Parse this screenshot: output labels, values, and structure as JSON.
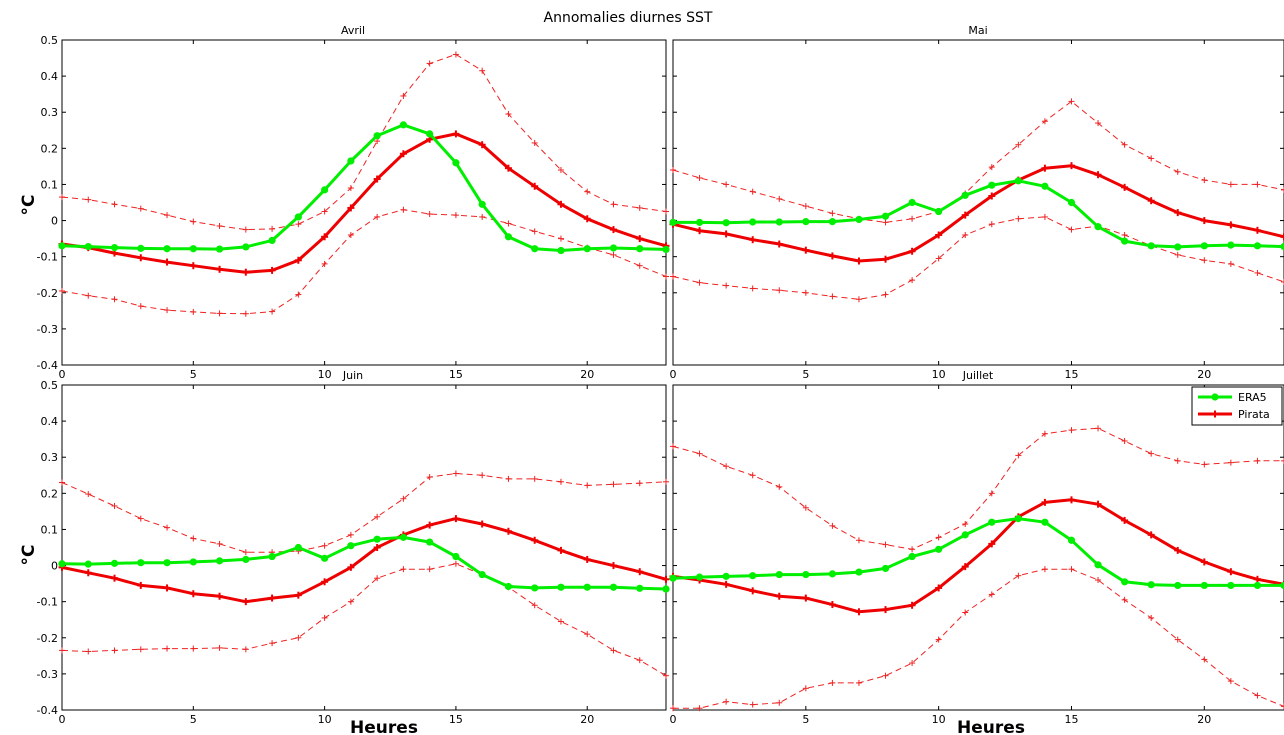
{
  "figure": {
    "suptitle": "Annomalies diurnes SST",
    "legend": {
      "placement": "top-right",
      "panel": 3
    }
  },
  "colors": {
    "era5": "#00ee00",
    "pirata": "#ee0000",
    "band": "#ee2222"
  },
  "chart_data": [
    {
      "type": "line",
      "title": "Avril",
      "xlabel": "",
      "ylabel": "°C",
      "xlim": [
        0,
        23
      ],
      "ylim": [
        -0.4,
        0.5
      ],
      "xticks": [
        0,
        5,
        10,
        15,
        20
      ],
      "yticks": [
        -0.4,
        -0.3,
        -0.2,
        -0.1,
        0,
        0.1,
        0.2,
        0.3,
        0.4,
        0.5
      ],
      "x": [
        0,
        1,
        2,
        3,
        4,
        5,
        6,
        7,
        8,
        9,
        10,
        11,
        12,
        13,
        14,
        15,
        16,
        17,
        18,
        19,
        20,
        21,
        22,
        23
      ],
      "series": [
        {
          "name": "ERA5",
          "values": [
            -0.07,
            -0.072,
            -0.075,
            -0.077,
            -0.078,
            -0.078,
            -0.079,
            -0.073,
            -0.055,
            0.01,
            0.085,
            0.165,
            0.235,
            0.265,
            0.24,
            0.16,
            0.045,
            -0.045,
            -0.078,
            -0.083,
            -0.078,
            -0.076,
            -0.078,
            -0.08
          ]
        },
        {
          "name": "Pirata",
          "values": [
            -0.065,
            -0.075,
            -0.09,
            -0.103,
            -0.115,
            -0.125,
            -0.135,
            -0.143,
            -0.138,
            -0.11,
            -0.045,
            0.035,
            0.115,
            0.185,
            0.225,
            0.24,
            0.21,
            0.145,
            0.095,
            0.045,
            0.005,
            -0.025,
            -0.05,
            -0.07
          ]
        },
        {
          "name": "",
          "values": [
            0.065,
            0.058,
            0.045,
            0.033,
            0.015,
            -0.003,
            -0.015,
            -0.025,
            -0.023,
            -0.01,
            0.025,
            0.09,
            0.22,
            0.345,
            0.435,
            0.46,
            0.415,
            0.295,
            0.215,
            0.14,
            0.08,
            0.045,
            0.035,
            0.025
          ]
        },
        {
          "name": "",
          "values": [
            -0.195,
            -0.208,
            -0.218,
            -0.237,
            -0.248,
            -0.253,
            -0.257,
            -0.258,
            -0.252,
            -0.205,
            -0.12,
            -0.04,
            0.01,
            0.03,
            0.018,
            0.015,
            0.01,
            -0.008,
            -0.03,
            -0.05,
            -0.075,
            -0.095,
            -0.125,
            -0.155
          ]
        }
      ]
    },
    {
      "type": "line",
      "title": "Mai",
      "xlabel": "",
      "ylabel": "",
      "xlim": [
        0,
        23
      ],
      "ylim": [
        -0.4,
        0.5
      ],
      "xticks": [
        0,
        5,
        10,
        15,
        20
      ],
      "yticks": [
        -0.4,
        -0.3,
        -0.2,
        -0.1,
        0,
        0.1,
        0.2,
        0.3,
        0.4,
        0.5
      ],
      "x": [
        0,
        1,
        2,
        3,
        4,
        5,
        6,
        7,
        8,
        9,
        10,
        11,
        12,
        13,
        14,
        15,
        16,
        17,
        18,
        19,
        20,
        21,
        22,
        23
      ],
      "series": [
        {
          "name": "ERA5",
          "values": [
            -0.005,
            -0.005,
            -0.006,
            -0.004,
            -0.004,
            -0.003,
            -0.003,
            0.003,
            0.012,
            0.05,
            0.025,
            0.07,
            0.098,
            0.11,
            0.095,
            0.05,
            -0.017,
            -0.057,
            -0.07,
            -0.073,
            -0.07,
            -0.068,
            -0.07,
            -0.072
          ]
        },
        {
          "name": "Pirata",
          "values": [
            -0.01,
            -0.028,
            -0.037,
            -0.053,
            -0.065,
            -0.082,
            -0.098,
            -0.112,
            -0.107,
            -0.085,
            -0.04,
            0.015,
            0.068,
            0.112,
            0.145,
            0.152,
            0.127,
            0.092,
            0.055,
            0.022,
            0.0,
            -0.012,
            -0.027,
            -0.045
          ]
        },
        {
          "name": "",
          "values": [
            0.14,
            0.118,
            0.1,
            0.08,
            0.06,
            0.04,
            0.02,
            0.005,
            -0.005,
            0.005,
            0.025,
            0.075,
            0.148,
            0.21,
            0.275,
            0.33,
            0.27,
            0.21,
            0.172,
            0.135,
            0.112,
            0.1,
            0.1,
            0.085
          ]
        },
        {
          "name": "",
          "values": [
            -0.155,
            -0.172,
            -0.18,
            -0.188,
            -0.193,
            -0.2,
            -0.21,
            -0.218,
            -0.205,
            -0.165,
            -0.105,
            -0.04,
            -0.01,
            0.005,
            0.01,
            -0.025,
            -0.015,
            -0.04,
            -0.07,
            -0.095,
            -0.11,
            -0.12,
            -0.145,
            -0.17
          ]
        }
      ]
    },
    {
      "type": "line",
      "title": "Juin",
      "xlabel": "Heures",
      "ylabel": "°C",
      "xlim": [
        0,
        23
      ],
      "ylim": [
        -0.4,
        0.5
      ],
      "xticks": [
        0,
        5,
        10,
        15,
        20
      ],
      "yticks": [
        -0.4,
        -0.3,
        -0.2,
        -0.1,
        0,
        0.1,
        0.2,
        0.3,
        0.4,
        0.5
      ],
      "x": [
        0,
        1,
        2,
        3,
        4,
        5,
        6,
        7,
        8,
        9,
        10,
        11,
        12,
        13,
        14,
        15,
        16,
        17,
        18,
        19,
        20,
        21,
        22,
        23
      ],
      "series": [
        {
          "name": "ERA5",
          "values": [
            0.005,
            0.004,
            0.006,
            0.008,
            0.008,
            0.01,
            0.013,
            0.017,
            0.025,
            0.05,
            0.02,
            0.055,
            0.073,
            0.078,
            0.065,
            0.025,
            -0.025,
            -0.058,
            -0.062,
            -0.06,
            -0.06,
            -0.06,
            -0.063,
            -0.065
          ]
        },
        {
          "name": "Pirata",
          "values": [
            -0.005,
            -0.02,
            -0.035,
            -0.055,
            -0.062,
            -0.078,
            -0.085,
            -0.1,
            -0.09,
            -0.082,
            -0.045,
            -0.005,
            0.05,
            0.085,
            0.112,
            0.13,
            0.115,
            0.095,
            0.07,
            0.042,
            0.017,
            0.0,
            -0.017,
            -0.038
          ]
        },
        {
          "name": "",
          "values": [
            0.23,
            0.198,
            0.165,
            0.13,
            0.105,
            0.075,
            0.06,
            0.037,
            0.037,
            0.04,
            0.055,
            0.085,
            0.135,
            0.185,
            0.245,
            0.255,
            0.25,
            0.24,
            0.24,
            0.232,
            0.222,
            0.225,
            0.228,
            0.232
          ]
        },
        {
          "name": "",
          "values": [
            -0.235,
            -0.238,
            -0.235,
            -0.232,
            -0.23,
            -0.23,
            -0.228,
            -0.232,
            -0.215,
            -0.2,
            -0.145,
            -0.1,
            -0.035,
            -0.01,
            -0.01,
            0.005,
            -0.025,
            -0.06,
            -0.11,
            -0.155,
            -0.19,
            -0.235,
            -0.262,
            -0.305
          ]
        }
      ]
    },
    {
      "type": "line",
      "title": "Juillet",
      "xlabel": "Heures",
      "ylabel": "",
      "xlim": [
        0,
        23
      ],
      "ylim": [
        -0.4,
        0.5
      ],
      "xticks": [
        0,
        5,
        10,
        15,
        20
      ],
      "yticks": [
        -0.4,
        -0.3,
        -0.2,
        -0.1,
        0,
        0.1,
        0.2,
        0.3,
        0.4,
        0.5
      ],
      "x": [
        0,
        1,
        2,
        3,
        4,
        5,
        6,
        7,
        8,
        9,
        10,
        11,
        12,
        13,
        14,
        15,
        16,
        17,
        18,
        19,
        20,
        21,
        22,
        23
      ],
      "series": [
        {
          "name": "ERA5",
          "values": [
            -0.035,
            -0.032,
            -0.03,
            -0.028,
            -0.025,
            -0.025,
            -0.023,
            -0.018,
            -0.008,
            0.025,
            0.045,
            0.085,
            0.12,
            0.13,
            0.12,
            0.07,
            0.002,
            -0.045,
            -0.053,
            -0.055,
            -0.055,
            -0.055,
            -0.055,
            -0.055
          ]
        },
        {
          "name": "Pirata",
          "values": [
            -0.03,
            -0.04,
            -0.052,
            -0.07,
            -0.085,
            -0.09,
            -0.108,
            -0.128,
            -0.122,
            -0.11,
            -0.062,
            -0.003,
            0.06,
            0.135,
            0.175,
            0.182,
            0.17,
            0.125,
            0.085,
            0.042,
            0.01,
            -0.017,
            -0.038,
            -0.052
          ]
        },
        {
          "name": "",
          "values": [
            0.33,
            0.31,
            0.275,
            0.25,
            0.218,
            0.16,
            0.11,
            0.07,
            0.058,
            0.045,
            0.078,
            0.115,
            0.2,
            0.305,
            0.365,
            0.375,
            0.38,
            0.345,
            0.31,
            0.29,
            0.28,
            0.285,
            0.29,
            0.29
          ]
        },
        {
          "name": "",
          "values": [
            -0.395,
            -0.395,
            -0.377,
            -0.385,
            -0.38,
            -0.34,
            -0.325,
            -0.325,
            -0.305,
            -0.27,
            -0.205,
            -0.13,
            -0.08,
            -0.028,
            -0.01,
            -0.01,
            -0.04,
            -0.095,
            -0.145,
            -0.205,
            -0.26,
            -0.32,
            -0.36,
            -0.39
          ]
        }
      ]
    }
  ]
}
